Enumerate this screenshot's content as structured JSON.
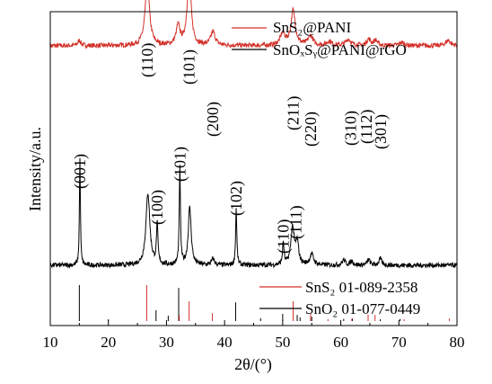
{
  "chart_data": {
    "type": "line",
    "xlabel": "2θ/(°)",
    "ylabel": "Intensity/a.u.",
    "xlim": [
      10,
      80
    ],
    "x_ticks": [
      "10",
      "20",
      "30",
      "40",
      "50",
      "60",
      "70",
      "80"
    ],
    "grid": false,
    "colors": {
      "red": "#d3312a",
      "black": "#000000"
    },
    "legend_top": {
      "placement": "top-right",
      "entries": [
        {
          "label": "SnS₂@PANI",
          "color": "#d3312a"
        },
        {
          "label": "SnOₓSᵧ@PANI@rGO",
          "color": "#000000"
        }
      ]
    },
    "legend_bottom": {
      "placement": "bottom-right",
      "entries": [
        {
          "label": "SnS₂ 01-089-2358",
          "color": "#d3312a"
        },
        {
          "label": "SnO₂ 01-077-0449",
          "color": "#000000"
        }
      ]
    },
    "series": [
      {
        "name": "SnS₂@PANI",
        "color": "#d3312a",
        "base": 0.84,
        "peaks": [
          {
            "x": 15.0,
            "h": 0.05,
            "w": 0.3
          },
          {
            "x": 26.7,
            "h": 0.58,
            "w": 0.45
          },
          {
            "x": 32.0,
            "h": 0.18,
            "w": 0.4
          },
          {
            "x": 33.9,
            "h": 0.66,
            "w": 0.4
          },
          {
            "x": 38.0,
            "h": 0.13,
            "w": 0.45
          },
          {
            "x": 50.0,
            "h": 0.11,
            "w": 0.5
          },
          {
            "x": 51.8,
            "h": 0.33,
            "w": 0.45
          },
          {
            "x": 54.8,
            "h": 0.09,
            "w": 0.5
          },
          {
            "x": 58.0,
            "h": 0.04,
            "w": 0.5
          },
          {
            "x": 61.3,
            "h": 0.06,
            "w": 0.5
          },
          {
            "x": 64.8,
            "h": 0.06,
            "w": 0.4
          },
          {
            "x": 66.0,
            "h": 0.05,
            "w": 0.4
          },
          {
            "x": 70.5,
            "h": 0.03,
            "w": 0.5
          },
          {
            "x": 78.5,
            "h": 0.05,
            "w": 0.5
          }
        ]
      },
      {
        "name": "SnOₓSᵧ@PANI@rGO",
        "color": "#000000",
        "base": 0.0,
        "peaks": [
          {
            "x": 15.1,
            "h": 1.0,
            "w": 0.1
          },
          {
            "x": 26.8,
            "h": 0.68,
            "w": 0.4
          },
          {
            "x": 28.4,
            "h": 0.37,
            "w": 0.15
          },
          {
            "x": 32.3,
            "h": 0.93,
            "w": 0.12
          },
          {
            "x": 34.0,
            "h": 0.54,
            "w": 0.3
          },
          {
            "x": 38.0,
            "h": 0.06,
            "w": 0.3
          },
          {
            "x": 42.0,
            "h": 0.55,
            "w": 0.12
          },
          {
            "x": 50.1,
            "h": 0.21,
            "w": 0.15
          },
          {
            "x": 51.7,
            "h": 0.35,
            "w": 0.35
          },
          {
            "x": 52.5,
            "h": 0.2,
            "w": 0.3
          },
          {
            "x": 55.0,
            "h": 0.1,
            "w": 0.4
          },
          {
            "x": 60.5,
            "h": 0.05,
            "w": 0.3
          },
          {
            "x": 61.9,
            "h": 0.04,
            "w": 0.3
          },
          {
            "x": 64.8,
            "h": 0.05,
            "w": 0.3
          },
          {
            "x": 66.8,
            "h": 0.06,
            "w": 0.3
          }
        ]
      }
    ],
    "peak_labels_red": [
      {
        "x": 26.7,
        "text": "(110)"
      },
      {
        "x": 33.9,
        "text": "(101)"
      },
      {
        "x": 38.0,
        "text": "(200)"
      },
      {
        "x": 51.8,
        "text": "(211)"
      },
      {
        "x": 54.8,
        "text": "(220)"
      },
      {
        "x": 61.7,
        "text": "(310)"
      },
      {
        "x": 64.4,
        "text": "(112)"
      },
      {
        "x": 66.9,
        "text": "(301)"
      }
    ],
    "peak_labels_black": [
      {
        "x": 15.1,
        "text": "(001)"
      },
      {
        "x": 28.4,
        "text": "(100)"
      },
      {
        "x": 32.3,
        "text": "(101)"
      },
      {
        "x": 42.0,
        "text": "(102)"
      },
      {
        "x": 50.1,
        "text": "(110)"
      },
      {
        "x": 52.3,
        "text": "(111)"
      }
    ],
    "reference_SnS2": [
      {
        "x": 26.6,
        "i": 1.0
      },
      {
        "x": 32.2,
        "i": 0.17
      },
      {
        "x": 33.9,
        "i": 0.55
      },
      {
        "x": 37.9,
        "i": 0.22
      },
      {
        "x": 51.8,
        "i": 0.55
      },
      {
        "x": 54.8,
        "i": 0.2
      },
      {
        "x": 57.8,
        "i": 0.05
      },
      {
        "x": 61.9,
        "i": 0.07
      },
      {
        "x": 64.7,
        "i": 0.18
      },
      {
        "x": 65.9,
        "i": 0.17
      },
      {
        "x": 70.9,
        "i": 0.05
      },
      {
        "x": 78.7,
        "i": 0.07
      }
    ],
    "reference_SnO2": [
      {
        "x": 15.0,
        "i": 1.0
      },
      {
        "x": 20.0,
        "i": 0.05
      },
      {
        "x": 28.2,
        "i": 0.3
      },
      {
        "x": 30.3,
        "i": 0.15
      },
      {
        "x": 32.1,
        "i": 0.92
      },
      {
        "x": 41.9,
        "i": 0.52
      },
      {
        "x": 46.2,
        "i": 0.08
      },
      {
        "x": 50.0,
        "i": 0.2
      },
      {
        "x": 52.5,
        "i": 0.17
      },
      {
        "x": 53.0,
        "i": 0.1
      },
      {
        "x": 55.0,
        "i": 0.12
      },
      {
        "x": 60.5,
        "i": 0.06
      },
      {
        "x": 62.0,
        "i": 0.07
      },
      {
        "x": 66.8,
        "i": 0.05
      },
      {
        "x": 70.2,
        "i": 0.06
      }
    ]
  }
}
